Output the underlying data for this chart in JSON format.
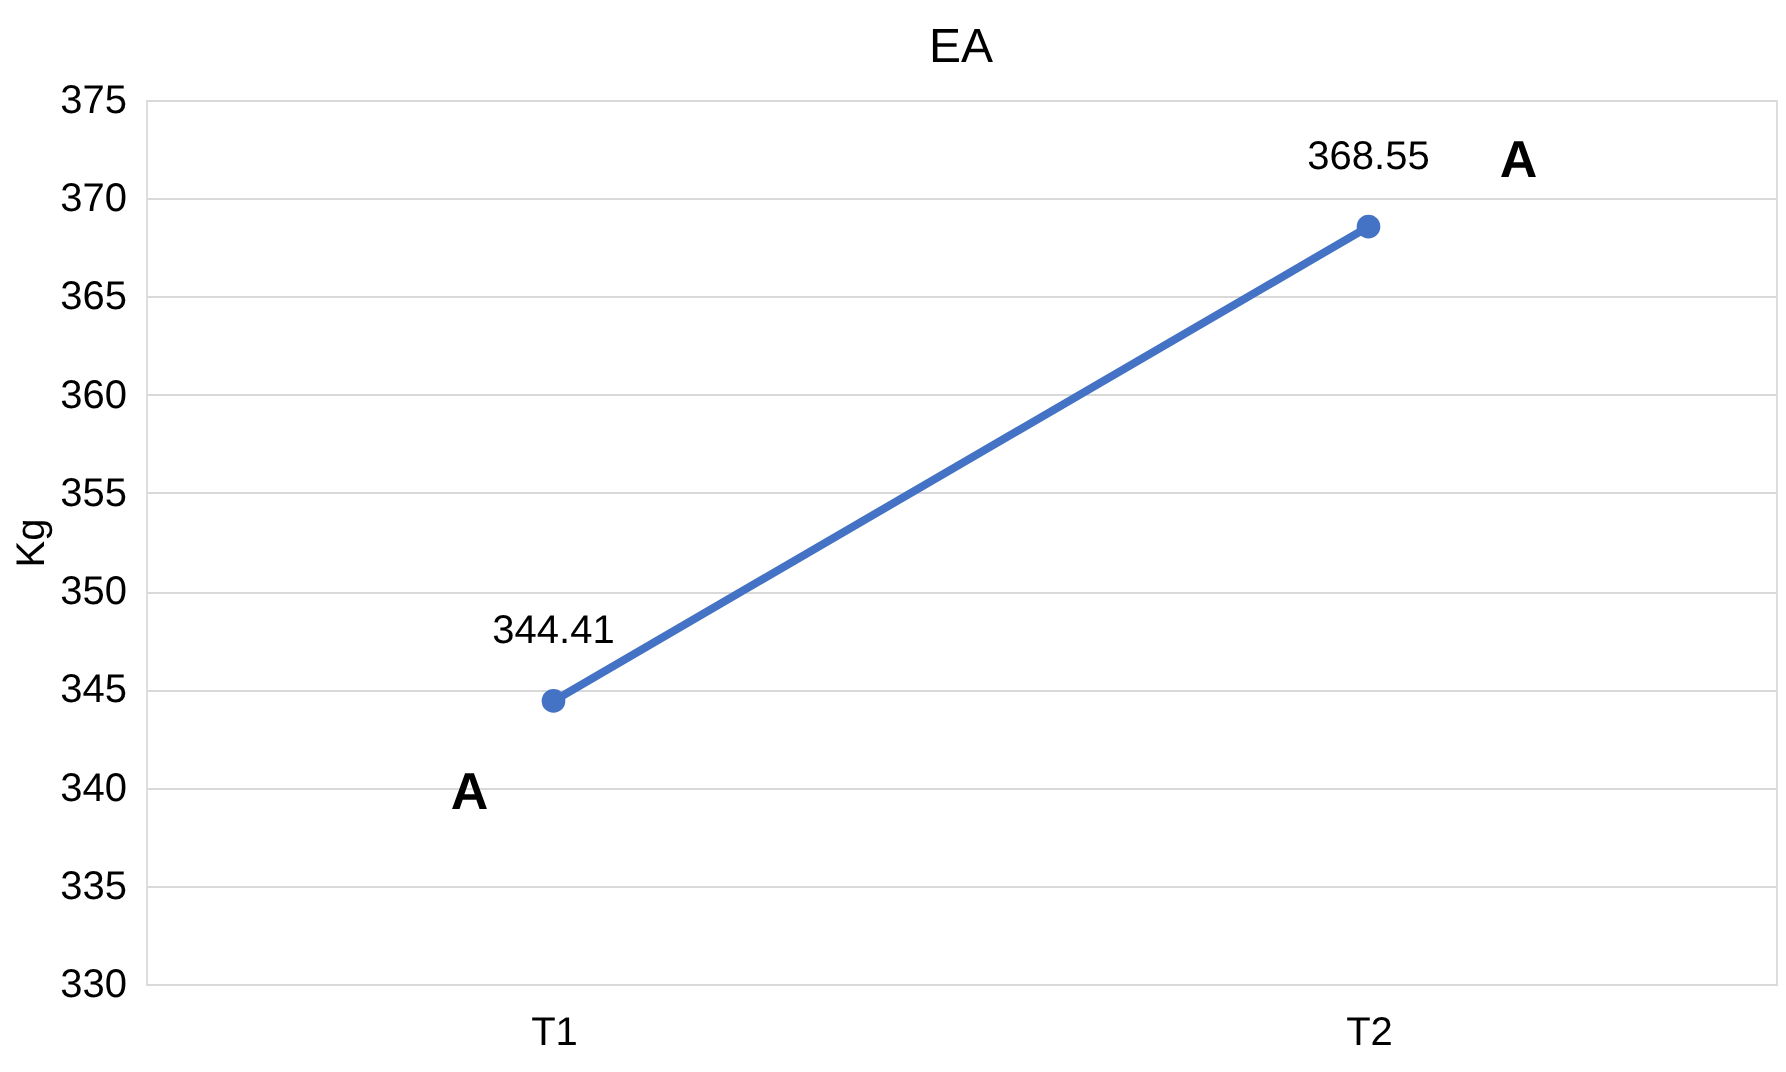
{
  "chart_data": {
    "type": "line",
    "title": "EA",
    "ylabel": "Kg",
    "categories": [
      "T1",
      "T2"
    ],
    "series": [
      {
        "color": "#4472c4",
        "values": [
          344.41,
          368.55
        ]
      }
    ],
    "ylim": [
      330,
      375
    ],
    "yticks": [
      330,
      335,
      340,
      345,
      350,
      355,
      360,
      365,
      370,
      375
    ],
    "grid": "y",
    "marker": "circle",
    "line_style": "solid",
    "data_labels": true,
    "annotations": [
      "A",
      "A"
    ]
  }
}
